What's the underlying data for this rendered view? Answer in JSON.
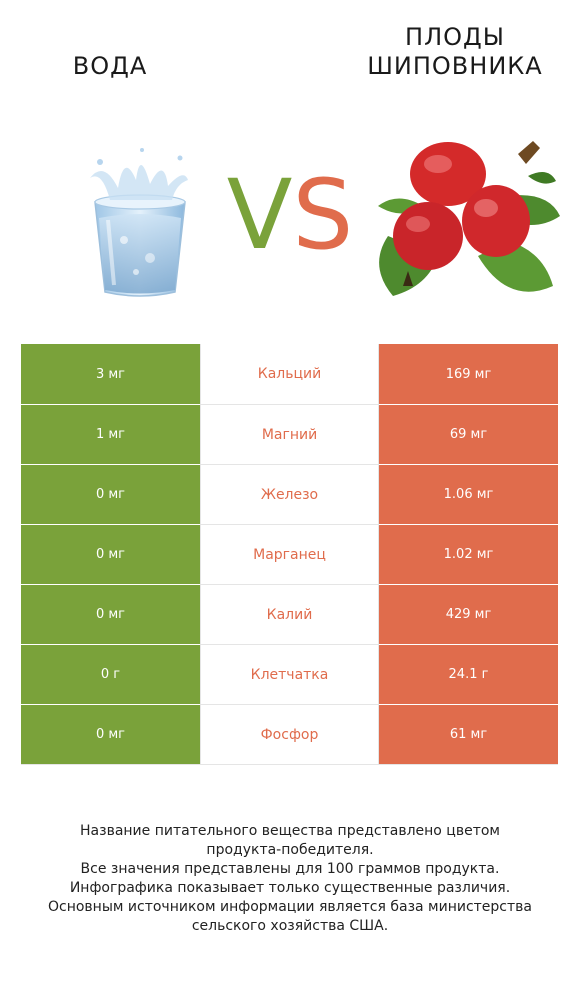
{
  "header": {
    "left_title": "ВОДА",
    "right_title_line1": "ПЛОДЫ",
    "right_title_line2": "ШИПОВНИКА",
    "vs_v": "V",
    "vs_s": "S"
  },
  "images": {
    "left": "water-glass-icon",
    "right": "rosehip-fruit-icon"
  },
  "colors": {
    "left_product": "#7aa23a",
    "right_product": "#e06c4c"
  },
  "rows": [
    {
      "left": "3 мг",
      "nutrient": "Кальций",
      "right": "169 мг"
    },
    {
      "left": "1 мг",
      "nutrient": "Магний",
      "right": "69 мг"
    },
    {
      "left": "0 мг",
      "nutrient": "Железо",
      "right": "1.06 мг"
    },
    {
      "left": "0 мг",
      "nutrient": "Марганец",
      "right": "1.02 мг"
    },
    {
      "left": "0 мг",
      "nutrient": "Калий",
      "right": "429 мг"
    },
    {
      "left": "0 г",
      "nutrient": "Клетчатка",
      "right": "24.1 г"
    },
    {
      "left": "0 мг",
      "nutrient": "Фосфор",
      "right": "61 мг"
    }
  ],
  "footnote": [
    "Название питательного вещества представлено цветом",
    "продукта-победителя.",
    "Все значения представлены для 100 граммов продукта.",
    "Инфографика показывает только существенные различия.",
    "Основным источником информации является база министерства",
    "сельского хозяйства США."
  ]
}
